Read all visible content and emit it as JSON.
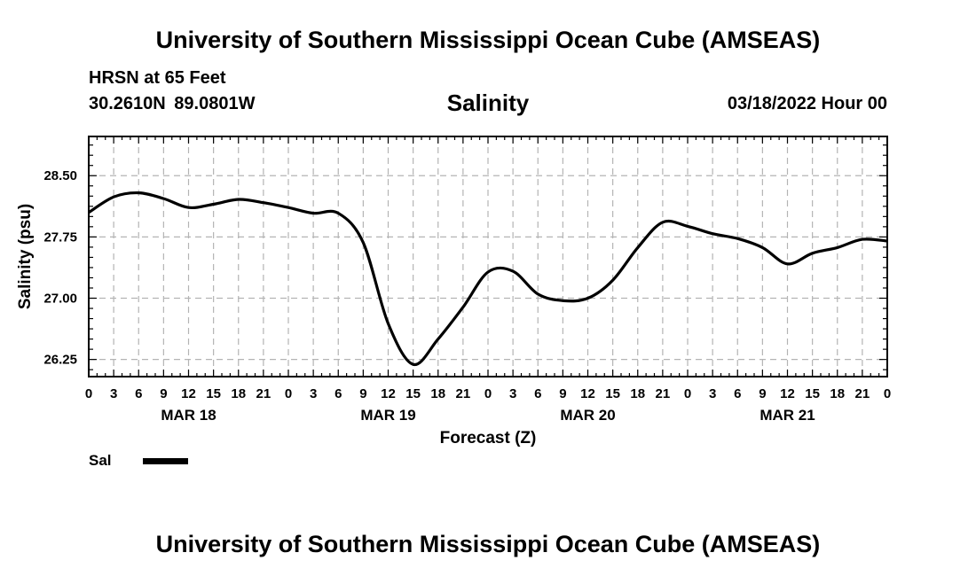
{
  "header": {
    "title": "University of Southern Mississippi Ocean Cube (AMSEAS)",
    "station": "HRSN at 65 Feet",
    "coords": "30.2610N  89.0801W",
    "chart_title": "Salinity",
    "forecast_time": "03/18/2022 Hour 00"
  },
  "footer": {
    "title": "University of Southern Mississippi Ocean Cube (AMSEAS)"
  },
  "legend": {
    "label": "Sal",
    "color": "#000000"
  },
  "chart_data": {
    "type": "line",
    "title": "Salinity",
    "xlabel": "Forecast (Z)",
    "ylabel": "Salinity (psu)",
    "xlim": [
      0,
      96
    ],
    "ylim": [
      26.04,
      28.98
    ],
    "grid": true,
    "legend_position": "bottom-left",
    "x_tick_values": [
      0,
      3,
      6,
      9,
      12,
      15,
      18,
      21,
      24,
      27,
      30,
      33,
      36,
      39,
      42,
      45,
      48,
      51,
      54,
      57,
      60,
      63,
      66,
      69,
      72,
      75,
      78,
      81,
      84,
      87,
      90,
      93,
      96
    ],
    "x_tick_labels": [
      "0",
      "3",
      "6",
      "9",
      "12",
      "15",
      "18",
      "21",
      "0",
      "3",
      "6",
      "9",
      "12",
      "15",
      "18",
      "21",
      "0",
      "3",
      "6",
      "9",
      "12",
      "15",
      "18",
      "21",
      "0",
      "3",
      "6",
      "9",
      "12",
      "15",
      "18",
      "21",
      "0"
    ],
    "date_labels": [
      {
        "x": 12,
        "label": "MAR 18"
      },
      {
        "x": 36,
        "label": "MAR 19"
      },
      {
        "x": 60,
        "label": "MAR 20"
      },
      {
        "x": 84,
        "label": "MAR 21"
      }
    ],
    "y_ticks": [
      26.25,
      27.0,
      27.75,
      28.5
    ],
    "y_tick_labels": [
      "26.25",
      "27.00",
      "27.75",
      "28.50"
    ],
    "series": [
      {
        "name": "Sal",
        "color": "#000000",
        "x": [
          0,
          3,
          6,
          9,
          12,
          15,
          18,
          21,
          24,
          27,
          30,
          33,
          36,
          39,
          42,
          45,
          48,
          51,
          54,
          57,
          60,
          63,
          66,
          69,
          72,
          75,
          78,
          81,
          84,
          87,
          90,
          93,
          96
        ],
        "values": [
          28.05,
          28.24,
          28.29,
          28.22,
          28.11,
          28.15,
          28.21,
          28.17,
          28.11,
          28.04,
          28.04,
          27.68,
          26.69,
          26.19,
          26.5,
          26.89,
          27.32,
          27.33,
          27.05,
          26.97,
          27.0,
          27.22,
          27.62,
          27.93,
          27.88,
          27.79,
          27.73,
          27.62,
          27.42,
          27.55,
          27.62,
          27.72,
          27.7
        ]
      }
    ]
  }
}
